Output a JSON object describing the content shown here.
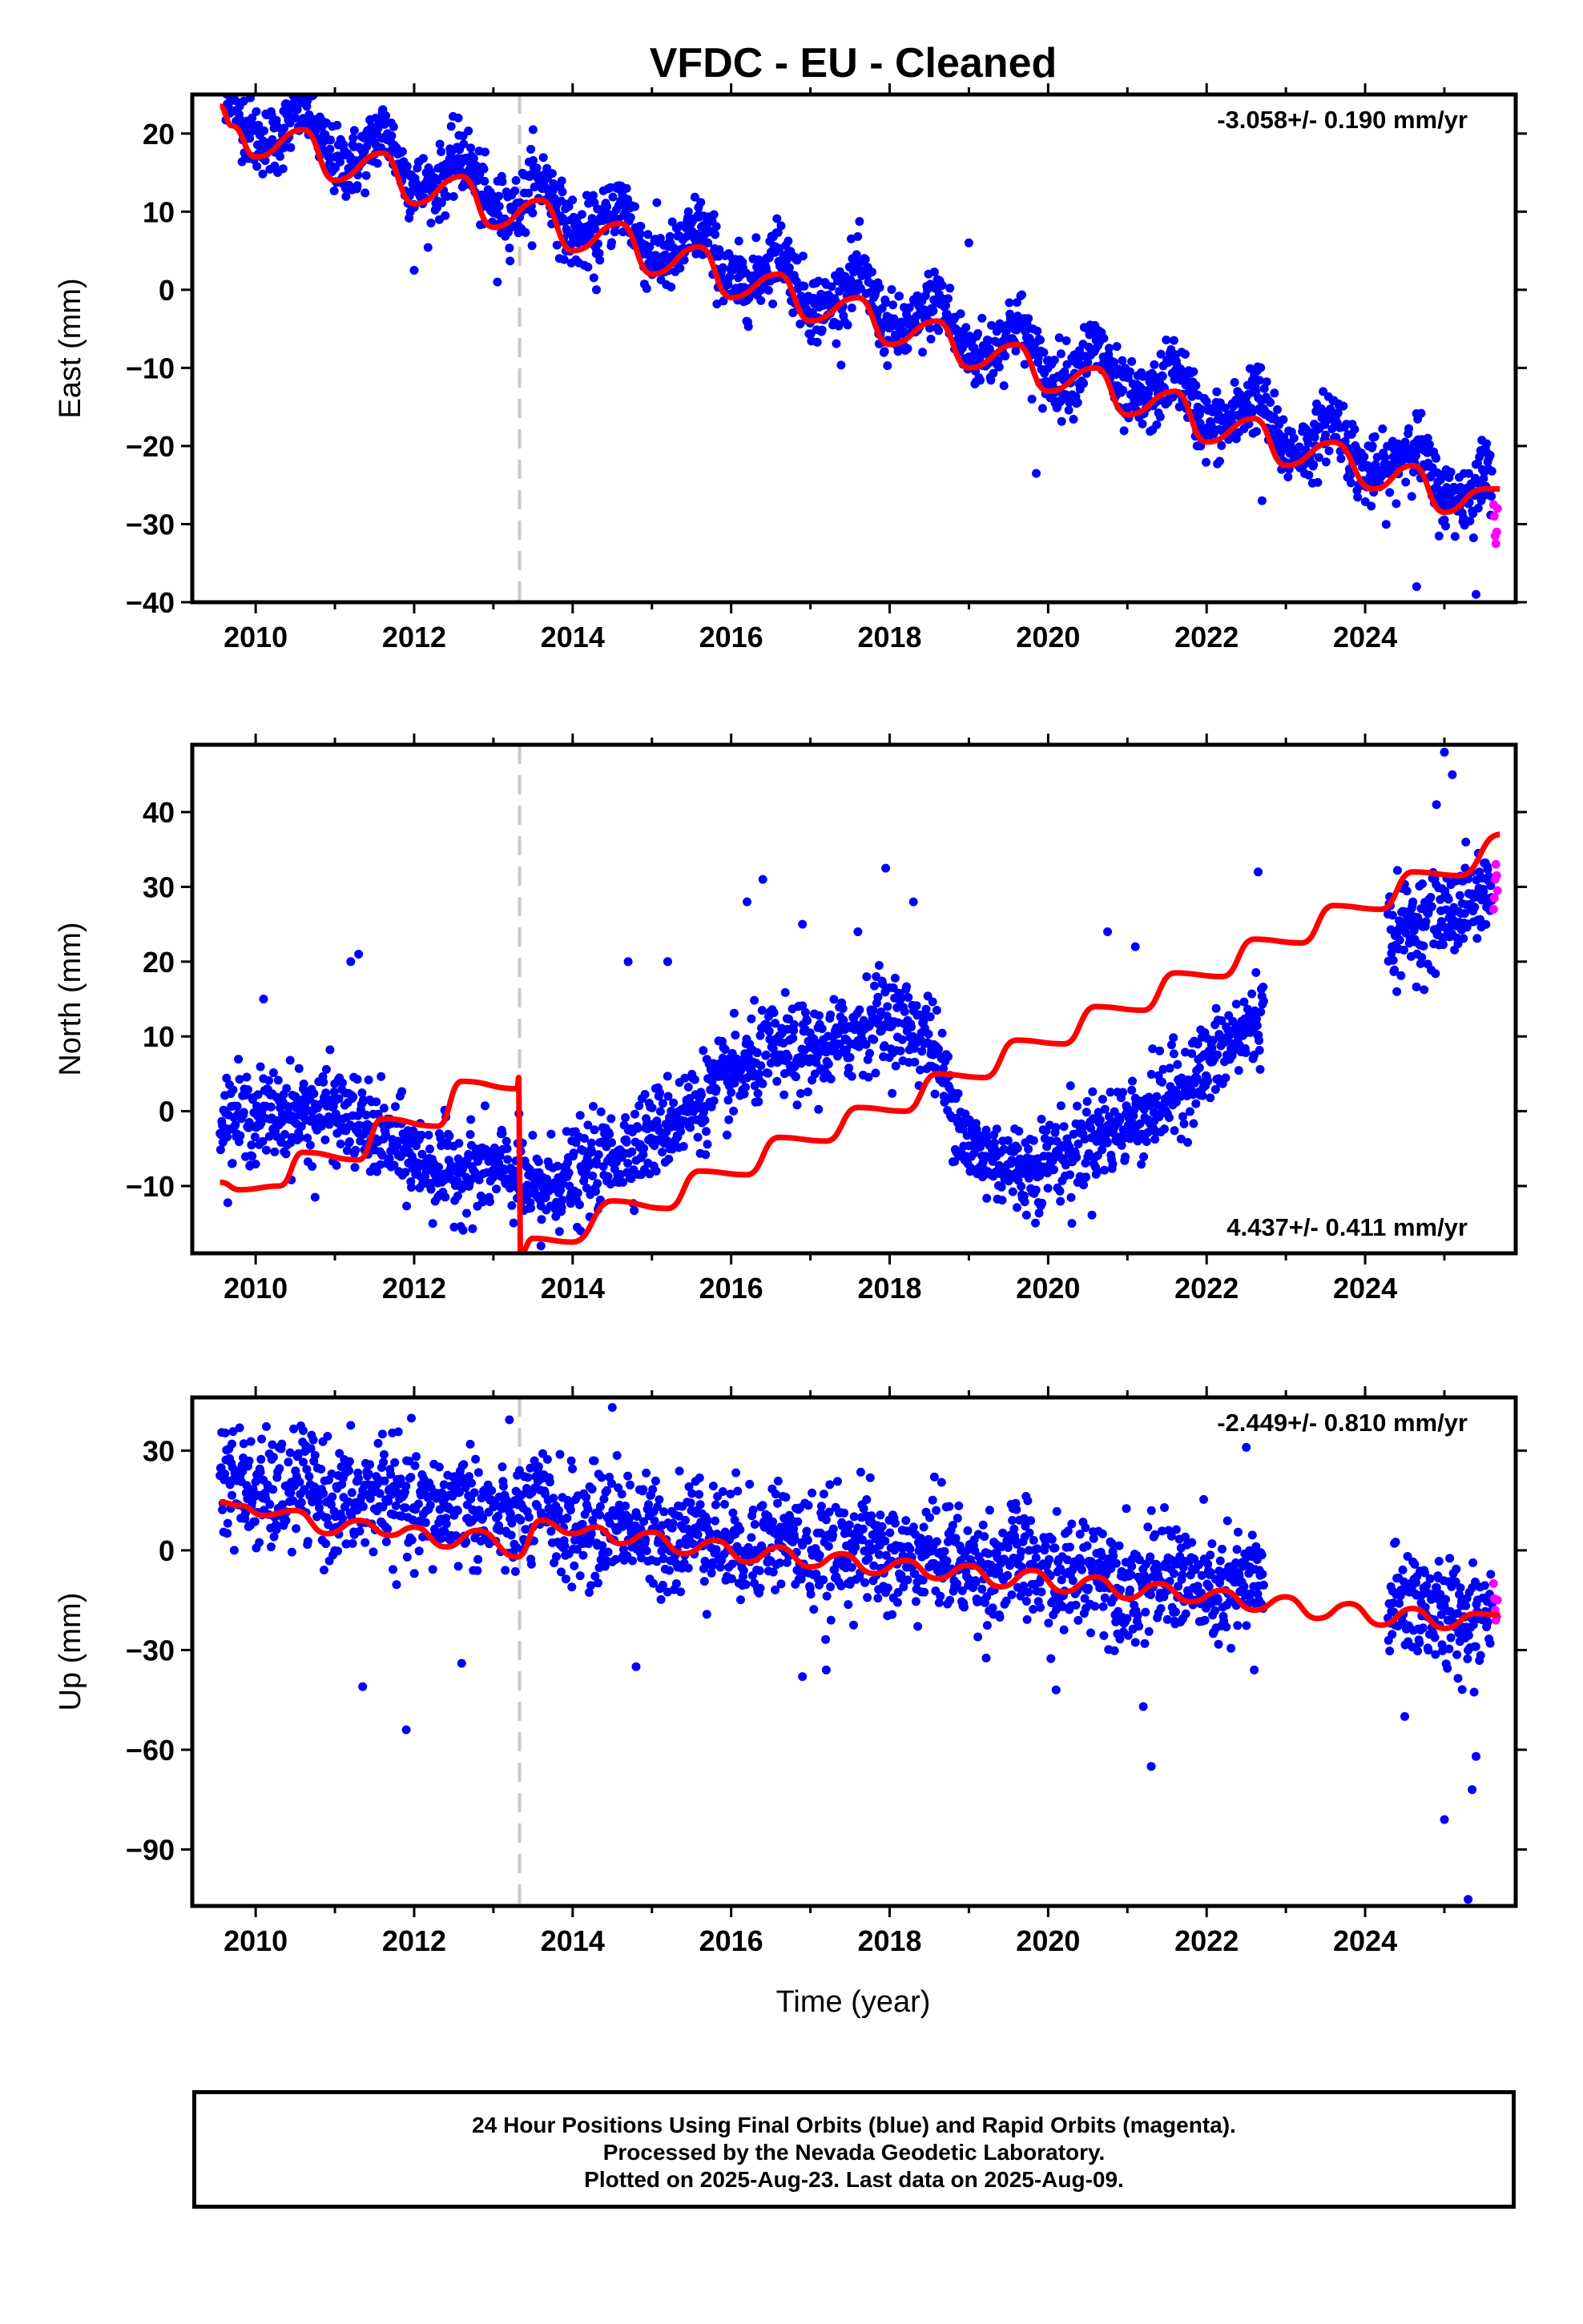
{
  "title": "VFDC  - EU - Cleaned",
  "colors": {
    "final": "#0000ff",
    "rapid": "#ff00ff",
    "model": "#ff0000",
    "event_line": "#c8c8c8"
  },
  "xlabel": "Time (year)",
  "footer": {
    "line1": "24 Hour Positions Using Final Orbits (blue) and Rapid Orbits (magenta).",
    "line2": "Processed by the Nevada Geodetic Laboratory.",
    "line3": "Plotted on 2025-Aug-23. Last data on 2025-Aug-09."
  },
  "chart_data": [
    {
      "type": "scatter",
      "ylabel": "East (mm)",
      "rate": "-3.058+/- 0.190 mm/yr",
      "rate_position": "top-right",
      "xlim": [
        2009.2,
        2025.9
      ],
      "ylim": [
        -40,
        25
      ],
      "xticks": [
        2010,
        2012,
        2014,
        2016,
        2018,
        2020,
        2022,
        2024
      ],
      "yticks": [
        20,
        10,
        0,
        -10,
        -20,
        -30,
        -40
      ],
      "event_lines": [
        2013.33
      ],
      "trend": {
        "t0": 2017.5,
        "y0": -1.2,
        "rate": -3.058,
        "annual_amp": 2.8,
        "semi_amp": 0.6,
        "noise": 2.2
      },
      "model": [
        [
          2009.55,
          23.5
        ],
        [
          2009.7,
          21.0
        ],
        [
          2010.0,
          17.0
        ],
        [
          2010.6,
          20.5
        ],
        [
          2011.0,
          14.0
        ],
        [
          2011.6,
          17.5
        ],
        [
          2012.0,
          11.0
        ],
        [
          2012.6,
          14.5
        ],
        [
          2013.0,
          8.0
        ],
        [
          2013.6,
          11.5
        ],
        [
          2014.0,
          5.0
        ],
        [
          2014.6,
          8.5
        ],
        [
          2015.0,
          2.0
        ],
        [
          2015.6,
          5.5
        ],
        [
          2016.0,
          -1.0
        ],
        [
          2016.6,
          2.0
        ],
        [
          2017.0,
          -4.0
        ],
        [
          2017.6,
          -1.0
        ],
        [
          2018.0,
          -7.0
        ],
        [
          2018.6,
          -4.0
        ],
        [
          2019.0,
          -10.0
        ],
        [
          2019.6,
          -7.0
        ],
        [
          2020.0,
          -13.0
        ],
        [
          2020.6,
          -10.0
        ],
        [
          2021.0,
          -16.0
        ],
        [
          2021.6,
          -13.0
        ],
        [
          2022.0,
          -19.5
        ],
        [
          2022.6,
          -16.5
        ],
        [
          2023.0,
          -22.5
        ],
        [
          2023.6,
          -19.5
        ],
        [
          2024.1,
          -25.5
        ],
        [
          2024.6,
          -22.5
        ],
        [
          2025.0,
          -28.5
        ],
        [
          2025.5,
          -25.5
        ],
        [
          2025.7,
          -25.5
        ]
      ],
      "rapid": {
        "x": [
          2025.62,
          2025.63,
          2025.64,
          2025.65,
          2025.66,
          2025.67
        ],
        "y": [
          -27.5,
          -29.0,
          -31.5,
          -32.5,
          -31.0,
          -28.0
        ]
      },
      "outliers": [
        [
          2012.0,
          2.5
        ],
        [
          2013.05,
          1.0
        ],
        [
          2014.3,
          0.0
        ],
        [
          2019.0,
          6.0
        ],
        [
          2019.85,
          -23.5
        ],
        [
          2022.7,
          -27.0
        ],
        [
          2024.65,
          -38.0
        ],
        [
          2025.4,
          -39.0
        ],
        [
          2011.6,
          23.0
        ],
        [
          2013.5,
          20.5
        ]
      ]
    },
    {
      "type": "scatter",
      "ylabel": "North (mm)",
      "rate": "4.437+/- 0.411 mm/yr",
      "rate_position": "bottom-right",
      "xlim": [
        2009.2,
        2025.9
      ],
      "ylim": [
        -19,
        49
      ],
      "xticks": [
        2010,
        2012,
        2014,
        2016,
        2018,
        2020,
        2022,
        2024
      ],
      "yticks": [
        40,
        30,
        20,
        10,
        0,
        -10
      ],
      "event_lines": [
        2013.33
      ],
      "anchors": [
        [
          2009.6,
          -1
        ],
        [
          2011.0,
          0
        ],
        [
          2011.5,
          -3
        ],
        [
          2012.3,
          -8
        ],
        [
          2013.2,
          -8
        ],
        [
          2013.5,
          -11
        ],
        [
          2014.5,
          -6
        ],
        [
          2015.3,
          -1
        ],
        [
          2016.5,
          8
        ],
        [
          2017.2,
          8
        ],
        [
          2017.9,
          13
        ],
        [
          2018.5,
          10
        ],
        [
          2019.0,
          -5
        ],
        [
          2019.7,
          -8
        ],
        [
          2020.3,
          -5
        ],
        [
          2021.3,
          0
        ],
        [
          2022.0,
          6
        ],
        [
          2022.7,
          13
        ],
        [
          2024.3,
          24
        ],
        [
          2025.0,
          26
        ],
        [
          2025.6,
          30
        ]
      ],
      "gap": [
        2022.72,
        2024.28
      ],
      "noise": 3.0,
      "model": [
        [
          2009.55,
          -9.5
        ],
        [
          2009.8,
          -10.5
        ],
        [
          2010.3,
          -10.0
        ],
        [
          2010.6,
          -5.5
        ],
        [
          2011.3,
          -6.5
        ],
        [
          2011.6,
          -1.0
        ],
        [
          2012.3,
          -2.0
        ],
        [
          2012.6,
          4.0
        ],
        [
          2013.3,
          3.0
        ],
        [
          2013.32,
          4.5
        ],
        [
          2013.34,
          -19.0
        ],
        [
          2013.5,
          -17.0
        ],
        [
          2014.0,
          -17.5
        ],
        [
          2014.5,
          -12.0
        ],
        [
          2015.2,
          -13.0
        ],
        [
          2015.6,
          -8.0
        ],
        [
          2016.2,
          -8.5
        ],
        [
          2016.6,
          -3.5
        ],
        [
          2017.2,
          -4.0
        ],
        [
          2017.6,
          0.5
        ],
        [
          2018.2,
          0.0
        ],
        [
          2018.6,
          5.0
        ],
        [
          2019.2,
          4.5
        ],
        [
          2019.6,
          9.5
        ],
        [
          2020.2,
          9.0
        ],
        [
          2020.6,
          14.0
        ],
        [
          2021.2,
          13.5
        ],
        [
          2021.6,
          18.5
        ],
        [
          2022.2,
          18.0
        ],
        [
          2022.6,
          23.0
        ],
        [
          2023.2,
          22.5
        ],
        [
          2023.6,
          27.5
        ],
        [
          2024.2,
          27.0
        ],
        [
          2024.6,
          32.0
        ],
        [
          2025.2,
          31.5
        ],
        [
          2025.7,
          37.0
        ]
      ],
      "rapid": {
        "x": [
          2025.62,
          2025.63,
          2025.64,
          2025.65,
          2025.66,
          2025.67
        ],
        "y": [
          27.0,
          28.5,
          31.0,
          33.0,
          31.5,
          29.5
        ]
      },
      "outliers": [
        [
          2011.3,
          21.0
        ],
        [
          2011.2,
          20.0
        ],
        [
          2014.7,
          20.0
        ],
        [
          2015.2,
          20.0
        ],
        [
          2016.4,
          31.0
        ],
        [
          2016.2,
          28.0
        ],
        [
          2016.9,
          25.0
        ],
        [
          2017.6,
          24.0
        ],
        [
          2017.95,
          32.5
        ],
        [
          2018.3,
          28.0
        ],
        [
          2020.75,
          24.0
        ],
        [
          2021.1,
          22.0
        ],
        [
          2022.65,
          32.0
        ],
        [
          2024.4,
          16.0
        ],
        [
          2025.0,
          48.0
        ],
        [
          2025.1,
          45.0
        ],
        [
          2024.9,
          41.0
        ],
        [
          2010.1,
          15.0
        ],
        [
          2010.75,
          -11.5
        ],
        [
          2013.6,
          -18.0
        ],
        [
          2014.1,
          -16.0
        ],
        [
          2020.3,
          -15.0
        ]
      ]
    },
    {
      "type": "scatter",
      "ylabel": "Up (mm)",
      "rate": "-2.449+/- 0.810 mm/yr",
      "rate_position": "top-right",
      "xlim": [
        2009.2,
        2025.9
      ],
      "ylim": [
        -107,
        46
      ],
      "xticks": [
        2010,
        2012,
        2014,
        2016,
        2018,
        2020,
        2022,
        2024
      ],
      "yticks": [
        30,
        0,
        -30,
        -60,
        -90
      ],
      "event_lines": [
        2013.33
      ],
      "trend": {
        "t0": 2017.5,
        "y0": 0.0,
        "rate": -2.449,
        "annual_amp": 2.5,
        "semi_amp": 0.5,
        "noise": 8.5
      },
      "gap": [
        2022.72,
        2024.28
      ],
      "model": [
        [
          2009.55,
          14.5
        ],
        [
          2009.8,
          13.5
        ],
        [
          2010.1,
          10.5
        ],
        [
          2010.5,
          12.0
        ],
        [
          2010.9,
          5.0
        ],
        [
          2011.3,
          9.0
        ],
        [
          2011.7,
          4.5
        ],
        [
          2012.0,
          7.0
        ],
        [
          2012.4,
          1.0
        ],
        [
          2012.8,
          6.0
        ],
        [
          2013.3,
          -2.0
        ],
        [
          2013.6,
          9.0
        ],
        [
          2014.0,
          5.0
        ],
        [
          2014.3,
          7.0
        ],
        [
          2014.6,
          2.0
        ],
        [
          2015.0,
          5.5
        ],
        [
          2015.4,
          -1.0
        ],
        [
          2015.8,
          3.0
        ],
        [
          2016.2,
          -3.5
        ],
        [
          2016.6,
          1.0
        ],
        [
          2017.0,
          -5.0
        ],
        [
          2017.4,
          -1.0
        ],
        [
          2017.8,
          -7.0
        ],
        [
          2018.2,
          -3.0
        ],
        [
          2018.6,
          -8.5
        ],
        [
          2019.0,
          -4.5
        ],
        [
          2019.4,
          -11.0
        ],
        [
          2019.8,
          -6.0
        ],
        [
          2020.2,
          -12.5
        ],
        [
          2020.6,
          -8.0
        ],
        [
          2021.0,
          -14.5
        ],
        [
          2021.4,
          -10.0
        ],
        [
          2021.8,
          -15.5
        ],
        [
          2022.2,
          -12.0
        ],
        [
          2022.6,
          -18.0
        ],
        [
          2023.0,
          -14.0
        ],
        [
          2023.4,
          -20.5
        ],
        [
          2023.8,
          -16.0
        ],
        [
          2024.2,
          -22.5
        ],
        [
          2024.6,
          -17.5
        ],
        [
          2025.0,
          -23.5
        ],
        [
          2025.4,
          -19.0
        ],
        [
          2025.7,
          -19.5
        ]
      ],
      "rapid": {
        "x": [
          2025.62,
          2025.63,
          2025.64,
          2025.65,
          2025.66,
          2025.67
        ],
        "y": [
          -10.0,
          -14.5,
          -18.0,
          -21.0,
          -20.0,
          -15.0
        ]
      },
      "outliers": [
        [
          2011.9,
          -54.0
        ],
        [
          2011.35,
          -41.0
        ],
        [
          2010.6,
          36.0
        ],
        [
          2011.6,
          35.0
        ],
        [
          2014.5,
          43.0
        ],
        [
          2014.8,
          -35.0
        ],
        [
          2016.9,
          -38.0
        ],
        [
          2017.2,
          -36.0
        ],
        [
          2020.1,
          -42.0
        ],
        [
          2021.3,
          -65.0
        ],
        [
          2021.2,
          -47.0
        ],
        [
          2022.5,
          31.0
        ],
        [
          2022.6,
          -36.0
        ],
        [
          2024.5,
          -50.0
        ],
        [
          2025.0,
          -81.0
        ],
        [
          2025.3,
          -105.0
        ],
        [
          2025.35,
          -72.0
        ],
        [
          2025.4,
          -62.0
        ],
        [
          2012.6,
          -34.0
        ],
        [
          2009.7,
          32.0
        ]
      ]
    }
  ]
}
